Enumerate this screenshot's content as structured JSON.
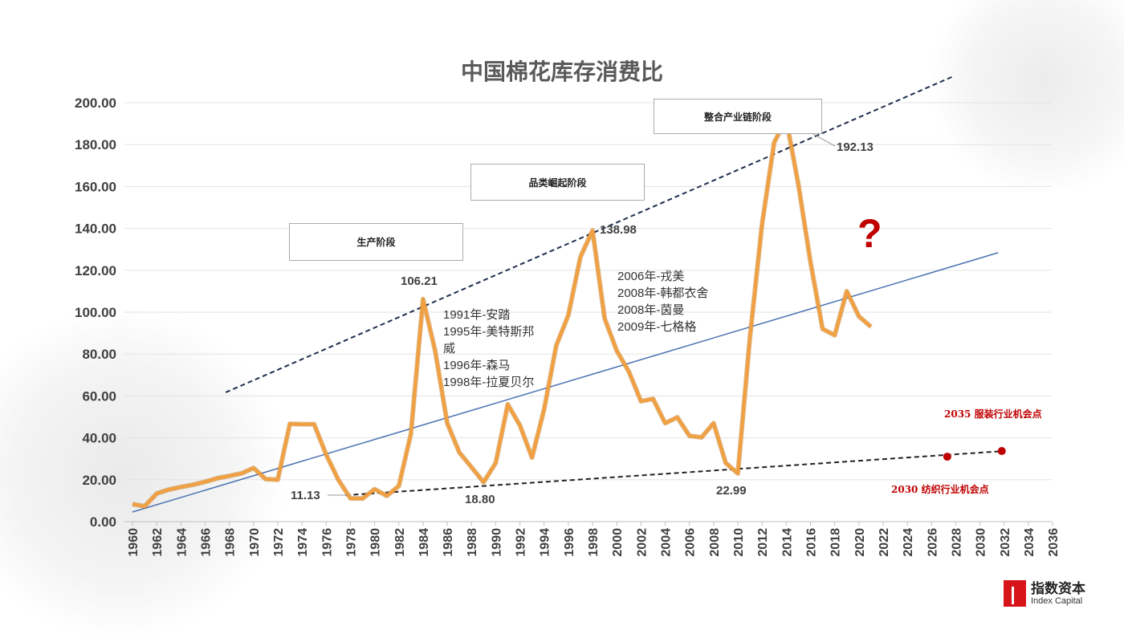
{
  "chart_data": {
    "type": "line",
    "title": "中国棉花库存消费比",
    "xlabel": "",
    "ylabel": "",
    "xlim": [
      1960,
      2036
    ],
    "ylim": [
      0,
      200
    ],
    "y_ticks": [
      "0.00",
      "20.00",
      "40.00",
      "60.00",
      "80.00",
      "100.00",
      "120.00",
      "140.00",
      "160.00",
      "180.00",
      "200.00"
    ],
    "x_ticks": [
      1960,
      1962,
      1964,
      1966,
      1968,
      1970,
      1972,
      1974,
      1976,
      1978,
      1980,
      1982,
      1984,
      1986,
      1988,
      1990,
      1992,
      1994,
      1996,
      1998,
      2000,
      2002,
      2004,
      2006,
      2008,
      2010,
      2012,
      2014,
      2016,
      2018,
      2020,
      2022,
      2024,
      2026,
      2028,
      2030,
      2032,
      2034,
      2036
    ],
    "grid": true,
    "series": [
      {
        "name": "库存消费比",
        "color": "#f0a040",
        "x": [
          1960,
          1961,
          1962,
          1963,
          1964,
          1965,
          1966,
          1967,
          1968,
          1969,
          1970,
          1971,
          1972,
          1973,
          1974,
          1975,
          1976,
          1977,
          1978,
          1979,
          1980,
          1981,
          1982,
          1983,
          1984,
          1985,
          1986,
          1987,
          1988,
          1989,
          1990,
          1991,
          1992,
          1993,
          1994,
          1995,
          1996,
          1997,
          1998,
          1999,
          2000,
          2001,
          2002,
          2003,
          2004,
          2005,
          2006,
          2007,
          2008,
          2009,
          2010,
          2011,
          2012,
          2013,
          2014,
          2015,
          2016,
          2017,
          2018,
          2019,
          2020,
          2021
        ],
        "values": [
          8.4,
          7.3,
          13.4,
          15.3,
          16.5,
          17.6,
          19,
          20.7,
          21.8,
          23,
          25.6,
          20.3,
          20,
          46.7,
          46.5,
          46.5,
          32,
          20,
          11.13,
          11,
          15.5,
          12.3,
          17,
          42,
          106.21,
          81.6,
          47,
          33,
          26,
          18.8,
          28,
          56,
          46,
          30.6,
          53.6,
          84,
          98.5,
          126.4,
          138.98,
          97,
          81.6,
          71.6,
          57.5,
          58.6,
          47,
          49.8,
          41,
          40.2,
          47,
          28,
          22.99,
          88,
          142,
          181,
          192.13,
          161,
          124,
          92,
          89,
          110,
          98,
          93
        ]
      }
    ],
    "trendlines": [
      {
        "name": "upper-trend",
        "style": "dashed",
        "color": "#1f2d4d",
        "from": [
          1967.7,
          61.7
        ],
        "to": [
          2027.8,
          212.6
        ]
      },
      {
        "name": "middle-trend",
        "style": "solid",
        "color": "#4a72b0",
        "from": [
          1960,
          4.6
        ],
        "to": [
          2031.5,
          128.4
        ]
      },
      {
        "name": "lower-trend",
        "style": "dashed",
        "color": "#222222",
        "from": [
          1977.6,
          12.6
        ],
        "to": [
          2032,
          33.7
        ]
      }
    ],
    "markers": [
      {
        "x": 2027.3,
        "y": 31,
        "color": "#c00000"
      },
      {
        "x": 2031.8,
        "y": 33.7,
        "color": "#c00000"
      }
    ],
    "data_labels": {
      "peak_1984": "106.21",
      "peak_1998": "138.98",
      "peak_2014": "192.13",
      "low_1978": "11.13",
      "low_1989": "18.80",
      "low_2010": "22.99"
    },
    "stages": [
      "生产阶段",
      "品类崛起阶段",
      "整合产业链阶段"
    ],
    "annotations": {
      "brands_1990s": [
        "1991年-安踏",
        "1995年-美特斯邦",
        "威",
        "1996年-森马",
        "1998年-拉夏贝尔"
      ],
      "brands_2000s": [
        "2006年-戎美",
        "2008年-韩都衣舍",
        "2008年-茵曼",
        "2009年-七格格"
      ],
      "question": "?",
      "opportunity_2035": "2035 服装行业机会点",
      "opportunity_2030": "2030 纺织行业机会点"
    }
  },
  "logo": {
    "cn": "指数资本",
    "en": "Index Capital"
  }
}
